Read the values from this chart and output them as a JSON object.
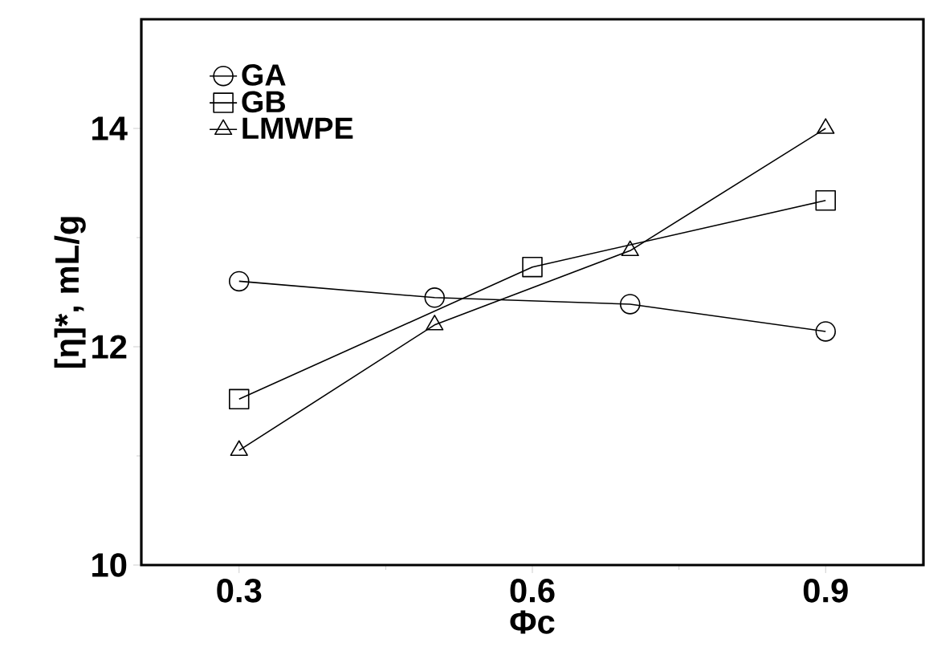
{
  "chart_data": {
    "type": "line",
    "xlabel": "Φc",
    "ylabel": "[η]*, mL/g",
    "xlim": [
      0.2,
      1.0
    ],
    "ylim": [
      10,
      15
    ],
    "xticks": [
      0.3,
      0.6,
      0.9
    ],
    "yticks": [
      10,
      12,
      14
    ],
    "grid": false,
    "legend": "top left",
    "line_style": "solid",
    "series": [
      {
        "name": "GA",
        "color": "#000000",
        "marker": "circle",
        "x": [
          0.3,
          0.5,
          0.7,
          0.9
        ],
        "values": [
          12.6,
          12.45,
          12.39,
          12.14
        ]
      },
      {
        "name": "GB",
        "color": "#000000",
        "marker": "square",
        "x": [
          0.3,
          0.6,
          0.9
        ],
        "values": [
          11.52,
          12.73,
          13.34
        ]
      },
      {
        "name": "LMWPE",
        "color": "#000000",
        "marker": "triangle",
        "x": [
          0.3,
          0.5,
          0.7,
          0.9
        ],
        "values": [
          11.05,
          12.2,
          12.88,
          14.0
        ]
      }
    ]
  }
}
